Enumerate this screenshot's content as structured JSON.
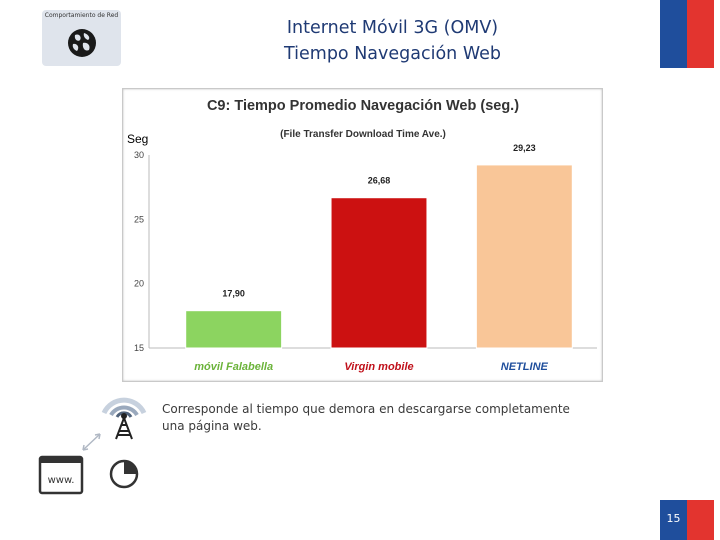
{
  "header": {
    "badge_label": "Comportamiento de Red",
    "title_line1": "Internet Móvil 3G (OMV)",
    "title_line2": "Tiempo Navegación Web",
    "page_number": "15"
  },
  "chart_data": {
    "type": "bar",
    "title": "C9: Tiempo Promedio Navegación Web (seg.)",
    "subtitle": "(File Transfer Download Time Ave.)",
    "ylabel": "Seg",
    "ylim": [
      15,
      30
    ],
    "yticks": [
      15,
      20,
      25,
      30
    ],
    "grid": false,
    "categories": [
      "móvil Falabella",
      "Virgin mobile",
      "NETLINE"
    ],
    "values": [
      17.9,
      26.68,
      29.23
    ],
    "value_labels": [
      "17,90",
      "26,68",
      "29,23"
    ],
    "colors": [
      "#8cd460",
      "#cc1111",
      "#f9c698"
    ],
    "category_colors": [
      "#6bb33a",
      "#c0101a",
      "#1f4e9c"
    ]
  },
  "description": "Corresponde al tiempo que demora en descargarse completamente una página web.",
  "icons": {
    "badge": "globe-icon",
    "antenna": "antenna-icon",
    "transfer": "transfer-arrows-icon",
    "browser": "browser-window-icon",
    "clock": "clock-icon"
  },
  "colors": {
    "title": "#1f3a74",
    "flag_blue": "#1f4e9c",
    "flag_red": "#e3342f"
  }
}
